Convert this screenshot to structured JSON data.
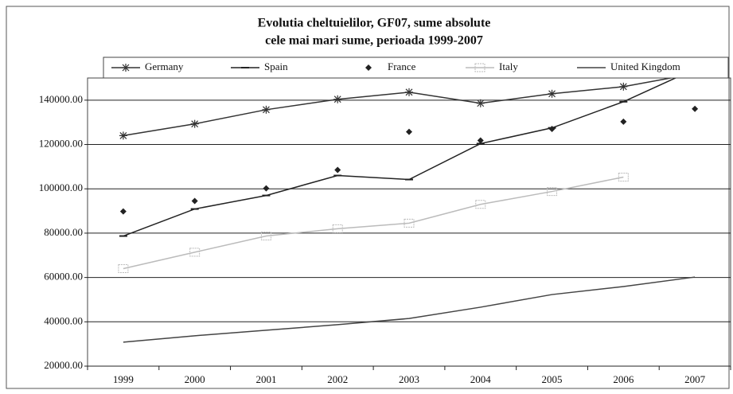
{
  "chart_data": {
    "type": "line",
    "title": [
      "Evolutia cheltuielilor, GF07, sume absolute",
      "cele mai mari sume, perioada 1999-2007"
    ],
    "categories": [
      "1999",
      "2000",
      "2001",
      "2002",
      "2003",
      "2004",
      "2005",
      "2006",
      "2007"
    ],
    "series": [
      {
        "name": "Germany",
        "color": "#333333",
        "marker": "asterisk",
        "line": true,
        "values": [
          124000,
          129300,
          135700,
          140400,
          143600,
          138600,
          142900,
          146100,
          152000
        ]
      },
      {
        "name": "Spain",
        "color": "#222222",
        "marker": "dash",
        "line": true,
        "values": [
          78700,
          90900,
          97000,
          106000,
          104200,
          120400,
          127500,
          139300,
          154000
        ]
      },
      {
        "name": "France",
        "color": "#222222",
        "marker": "diamond",
        "line": false,
        "values": [
          89800,
          94500,
          100200,
          108500,
          125700,
          121800,
          127000,
          130300,
          136100
        ]
      },
      {
        "name": "Italy",
        "color": "#bbbbbb",
        "marker": "square",
        "line": true,
        "values": [
          64000,
          71400,
          78700,
          82000,
          84500,
          93000,
          98800,
          105300,
          null
        ]
      },
      {
        "name": "United Kingdom",
        "color": "#444444",
        "marker": "none",
        "line": true,
        "values": [
          30800,
          33700,
          36200,
          38700,
          41500,
          46600,
          52300,
          55900,
          60200
        ]
      }
    ],
    "ylim": [
      20000,
      150000
    ],
    "yticks": [
      {
        "value": 20000,
        "label": "20000.00"
      },
      {
        "value": 40000,
        "label": "40000.00"
      },
      {
        "value": 60000,
        "label": "60000.00"
      },
      {
        "value": 80000,
        "label": "80000.00"
      },
      {
        "value": 100000,
        "label": "100000.00"
      },
      {
        "value": 120000,
        "label": "120000.00"
      },
      {
        "value": 140000,
        "label": "140000.00"
      }
    ],
    "grid": true,
    "legend": "top"
  }
}
